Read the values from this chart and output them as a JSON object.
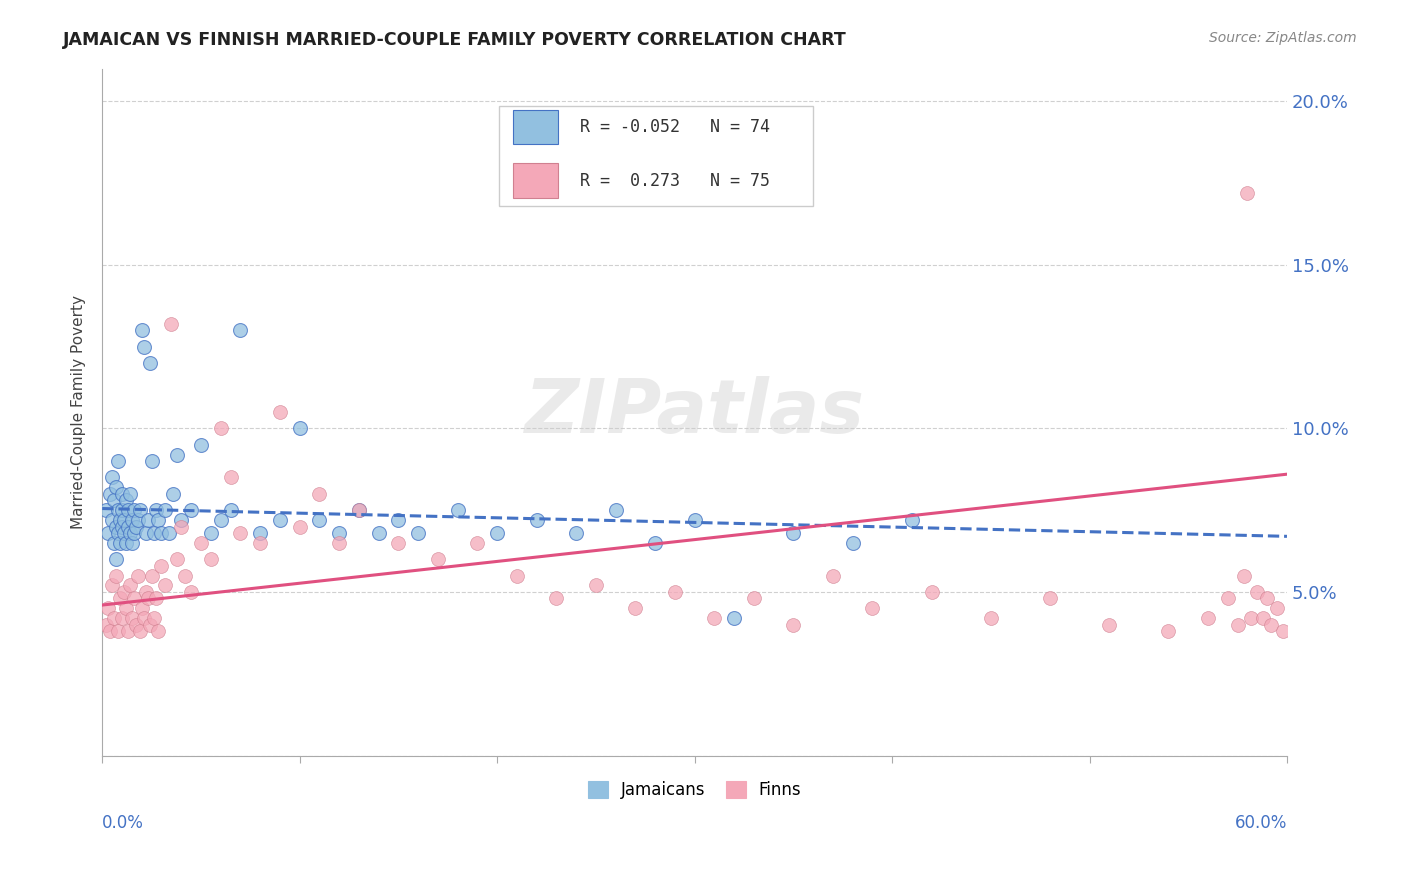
{
  "title": "JAMAICAN VS FINNISH MARRIED-COUPLE FAMILY POVERTY CORRELATION CHART",
  "source": "Source: ZipAtlas.com",
  "ylabel": "Married-Couple Family Poverty",
  "jamaicans_color": "#92c0e0",
  "finns_color": "#f4a8b8",
  "jamaicans_line_color": "#4472c4",
  "finns_line_color": "#e05080",
  "background_color": "#ffffff",
  "grid_color": "#d0d0d0",
  "tick_color": "#4472c4",
  "title_color": "#222222",
  "source_color": "#888888",
  "legend_label_jamaicans": "Jamaicans",
  "legend_label_finns": "Finns",
  "jamaicans_r_label": "R = -0.052",
  "jamaicans_n_label": "N = 74",
  "finns_r_label": "R =  0.273",
  "finns_n_label": "N = 75",
  "j_line_x0": 0.0,
  "j_line_y0": 0.0755,
  "j_line_x1": 0.6,
  "j_line_y1": 0.067,
  "f_line_x0": 0.0,
  "f_line_y0": 0.046,
  "f_line_x1": 0.6,
  "f_line_y1": 0.086,
  "xlim": [
    0.0,
    0.6
  ],
  "ylim": [
    0.0,
    0.21
  ],
  "ytick_vals": [
    0.0,
    0.05,
    0.1,
    0.15,
    0.2
  ],
  "ytick_labels": [
    "",
    "5.0%",
    "10.0%",
    "15.0%",
    "20.0%"
  ],
  "jamaicans_x": [
    0.002,
    0.003,
    0.004,
    0.005,
    0.005,
    0.006,
    0.006,
    0.007,
    0.007,
    0.007,
    0.008,
    0.008,
    0.008,
    0.009,
    0.009,
    0.01,
    0.01,
    0.01,
    0.011,
    0.011,
    0.012,
    0.012,
    0.013,
    0.013,
    0.014,
    0.014,
    0.015,
    0.015,
    0.016,
    0.016,
    0.017,
    0.018,
    0.019,
    0.02,
    0.021,
    0.022,
    0.023,
    0.024,
    0.025,
    0.026,
    0.027,
    0.028,
    0.03,
    0.032,
    0.034,
    0.036,
    0.038,
    0.04,
    0.045,
    0.05,
    0.055,
    0.06,
    0.065,
    0.07,
    0.08,
    0.09,
    0.1,
    0.11,
    0.12,
    0.13,
    0.14,
    0.15,
    0.16,
    0.18,
    0.2,
    0.22,
    0.24,
    0.26,
    0.28,
    0.3,
    0.32,
    0.35,
    0.38,
    0.41
  ],
  "jamaicans_y": [
    0.075,
    0.068,
    0.08,
    0.072,
    0.085,
    0.065,
    0.078,
    0.07,
    0.082,
    0.06,
    0.075,
    0.068,
    0.09,
    0.072,
    0.065,
    0.08,
    0.07,
    0.075,
    0.068,
    0.072,
    0.065,
    0.078,
    0.07,
    0.075,
    0.068,
    0.08,
    0.072,
    0.065,
    0.075,
    0.068,
    0.07,
    0.072,
    0.075,
    0.13,
    0.125,
    0.068,
    0.072,
    0.12,
    0.09,
    0.068,
    0.075,
    0.072,
    0.068,
    0.075,
    0.068,
    0.08,
    0.092,
    0.072,
    0.075,
    0.095,
    0.068,
    0.072,
    0.075,
    0.13,
    0.068,
    0.072,
    0.1,
    0.072,
    0.068,
    0.075,
    0.068,
    0.072,
    0.068,
    0.075,
    0.068,
    0.072,
    0.068,
    0.075,
    0.065,
    0.072,
    0.042,
    0.068,
    0.065,
    0.072
  ],
  "finns_x": [
    0.002,
    0.003,
    0.004,
    0.005,
    0.006,
    0.007,
    0.008,
    0.009,
    0.01,
    0.011,
    0.012,
    0.013,
    0.014,
    0.015,
    0.016,
    0.017,
    0.018,
    0.019,
    0.02,
    0.021,
    0.022,
    0.023,
    0.024,
    0.025,
    0.026,
    0.027,
    0.028,
    0.03,
    0.032,
    0.035,
    0.038,
    0.04,
    0.042,
    0.045,
    0.05,
    0.055,
    0.06,
    0.065,
    0.07,
    0.08,
    0.09,
    0.1,
    0.11,
    0.12,
    0.13,
    0.15,
    0.17,
    0.19,
    0.21,
    0.23,
    0.25,
    0.27,
    0.29,
    0.31,
    0.33,
    0.35,
    0.37,
    0.39,
    0.42,
    0.45,
    0.48,
    0.51,
    0.54,
    0.56,
    0.57,
    0.575,
    0.578,
    0.58,
    0.582,
    0.585,
    0.588,
    0.59,
    0.592,
    0.595,
    0.598
  ],
  "finns_y": [
    0.04,
    0.045,
    0.038,
    0.052,
    0.042,
    0.055,
    0.038,
    0.048,
    0.042,
    0.05,
    0.045,
    0.038,
    0.052,
    0.042,
    0.048,
    0.04,
    0.055,
    0.038,
    0.045,
    0.042,
    0.05,
    0.048,
    0.04,
    0.055,
    0.042,
    0.048,
    0.038,
    0.058,
    0.052,
    0.132,
    0.06,
    0.07,
    0.055,
    0.05,
    0.065,
    0.06,
    0.1,
    0.085,
    0.068,
    0.065,
    0.105,
    0.07,
    0.08,
    0.065,
    0.075,
    0.065,
    0.06,
    0.065,
    0.055,
    0.048,
    0.052,
    0.045,
    0.05,
    0.042,
    0.048,
    0.04,
    0.055,
    0.045,
    0.05,
    0.042,
    0.048,
    0.04,
    0.038,
    0.042,
    0.048,
    0.04,
    0.055,
    0.172,
    0.042,
    0.05,
    0.042,
    0.048,
    0.04,
    0.045,
    0.038
  ]
}
